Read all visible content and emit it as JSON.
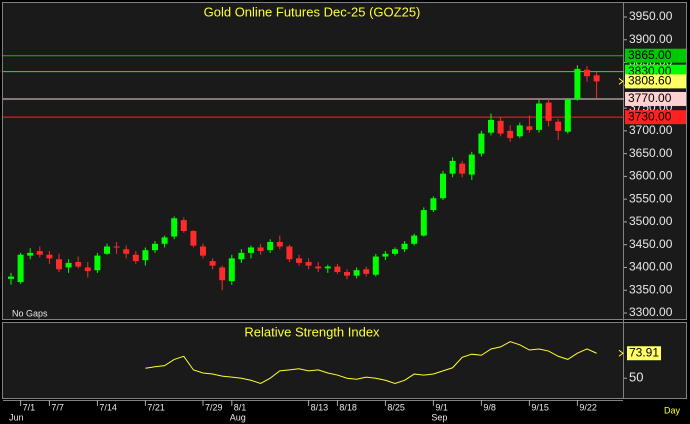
{
  "chart_data": {
    "type": "candlestick",
    "title": "Gold Online Futures Dec-25 (GOZ25)",
    "note": "No Gaps",
    "period": "Day",
    "categories": [
      null,
      "7/1",
      null,
      null,
      "7/7",
      null,
      null,
      null,
      null,
      "7/14",
      null,
      null,
      null,
      null,
      "7/21",
      null,
      null,
      null,
      null,
      null,
      "7/29",
      null,
      null,
      "8/1",
      null,
      null,
      null,
      null,
      null,
      null,
      null,
      "8/13",
      null,
      null,
      "8/18",
      null,
      null,
      null,
      null,
      "8/25",
      null,
      null,
      null,
      null,
      "9/1",
      null,
      null,
      null,
      null,
      "9/8",
      null,
      null,
      null,
      null,
      "9/15",
      null,
      null,
      null,
      null,
      "9/22",
      null,
      null
    ],
    "month_categories": [
      "Jun",
      null,
      null,
      null,
      null,
      null,
      null,
      null,
      null,
      null,
      null,
      null,
      null,
      null,
      null,
      null,
      null,
      null,
      null,
      null,
      null,
      null,
      null,
      "Aug",
      null,
      null,
      null,
      null,
      null,
      null,
      null,
      null,
      null,
      null,
      null,
      null,
      null,
      null,
      null,
      null,
      null,
      null,
      null,
      null,
      "Sep",
      null,
      null,
      null,
      null,
      null,
      null,
      null,
      null,
      null,
      null,
      null,
      null,
      null,
      null,
      null,
      null,
      null
    ],
    "open": [
      3375,
      3368,
      3426,
      3436,
      3428,
      3418,
      3400,
      3412,
      3400,
      3394,
      3430,
      3446,
      3440,
      3428,
      3416,
      3438,
      3452,
      3468,
      3504,
      3480,
      3446,
      3414,
      3400,
      3370,
      3418,
      3432,
      3444,
      3438,
      3456,
      3446,
      3420,
      3412,
      3402,
      3398,
      3402,
      3390,
      3382,
      3396,
      3384,
      3424,
      3430,
      3440,
      3452,
      3470,
      3526,
      3552,
      3606,
      3628,
      3604,
      3650,
      3696,
      3722,
      3700,
      3688,
      3710,
      3702,
      3762,
      3720,
      3698,
      3770,
      3834,
      3822
    ],
    "high": [
      3388,
      3432,
      3442,
      3446,
      3436,
      3430,
      3418,
      3424,
      3412,
      3432,
      3452,
      3456,
      3448,
      3436,
      3444,
      3458,
      3470,
      3512,
      3510,
      3482,
      3452,
      3420,
      3404,
      3428,
      3440,
      3448,
      3452,
      3462,
      3470,
      3450,
      3428,
      3420,
      3412,
      3406,
      3408,
      3396,
      3400,
      3402,
      3430,
      3436,
      3444,
      3458,
      3474,
      3532,
      3556,
      3612,
      3642,
      3634,
      3654,
      3700,
      3738,
      3730,
      3712,
      3718,
      3734,
      3768,
      3770,
      3726,
      3772,
      3844,
      3842,
      3830
    ],
    "low": [
      3362,
      3364,
      3418,
      3422,
      3408,
      3390,
      3388,
      3398,
      3378,
      3388,
      3428,
      3430,
      3420,
      3408,
      3404,
      3432,
      3444,
      3462,
      3476,
      3444,
      3420,
      3396,
      3350,
      3362,
      3410,
      3420,
      3428,
      3432,
      3440,
      3412,
      3404,
      3396,
      3390,
      3388,
      3386,
      3374,
      3376,
      3380,
      3380,
      3416,
      3426,
      3434,
      3448,
      3468,
      3522,
      3548,
      3598,
      3598,
      3592,
      3644,
      3690,
      3688,
      3676,
      3684,
      3696,
      3696,
      3710,
      3680,
      3694,
      3766,
      3808,
      3772
    ],
    "close": [
      3380,
      3428,
      3432,
      3428,
      3420,
      3396,
      3410,
      3402,
      3392,
      3426,
      3446,
      3444,
      3430,
      3414,
      3438,
      3452,
      3466,
      3508,
      3480,
      3448,
      3426,
      3404,
      3372,
      3420,
      3432,
      3444,
      3436,
      3456,
      3446,
      3418,
      3410,
      3404,
      3398,
      3402,
      3390,
      3382,
      3394,
      3386,
      3424,
      3430,
      3440,
      3452,
      3470,
      3526,
      3552,
      3606,
      3634,
      3606,
      3648,
      3694,
      3724,
      3694,
      3684,
      3712,
      3702,
      3760,
      3722,
      3700,
      3768,
      3836,
      3820,
      3808.6
    ],
    "last_close_label": "3808.60",
    "up_color": "#00ff00",
    "down_color": "#ff2a2a",
    "ylim": [
      3300,
      3950
    ],
    "yticks": [
      {
        "value": 3300,
        "label": "3300.00"
      },
      {
        "value": 3350,
        "label": "3350.00"
      },
      {
        "value": 3400,
        "label": "3400.00"
      },
      {
        "value": 3450,
        "label": "3450.00"
      },
      {
        "value": 3500,
        "label": "3500.00"
      },
      {
        "value": 3550,
        "label": "3550.00"
      },
      {
        "value": 3600,
        "label": "3600.00"
      },
      {
        "value": 3650,
        "label": "3650.00"
      },
      {
        "value": 3700,
        "label": "3700.00"
      },
      {
        "value": 3750,
        "label": "3750.00"
      },
      {
        "value": 3800,
        "label": "3800.00"
      },
      {
        "value": 3850,
        "label": "3850.00"
      },
      {
        "value": 3900,
        "label": "3900.00"
      },
      {
        "value": 3950,
        "label": "3950.00"
      }
    ],
    "price_lines": [
      {
        "value": 3865,
        "label": "3865.00",
        "color": "#00c800"
      },
      {
        "value": 3830,
        "label": "3830.00",
        "color": "#00ff00"
      },
      {
        "value": 3770,
        "label": "3770.00",
        "color": "#ffd0d0"
      },
      {
        "value": 3730,
        "label": "3730.00",
        "color": "#ff2020"
      }
    ],
    "indicator": {
      "title": "Relative Strength Index",
      "color": "#ffff33",
      "values": [
        null,
        null,
        null,
        null,
        null,
        null,
        null,
        null,
        null,
        null,
        null,
        null,
        null,
        null,
        59.5,
        61,
        62,
        68,
        71,
        58,
        55,
        54,
        52,
        51,
        50,
        48,
        45,
        50,
        57,
        58,
        59,
        57,
        58,
        55,
        53,
        50,
        49,
        51,
        50,
        48,
        45,
        48,
        54,
        53,
        54,
        57,
        60,
        70,
        73,
        72,
        78,
        80,
        85,
        82,
        77,
        78,
        76,
        71,
        68,
        74,
        78,
        73.91
      ],
      "value_label": "73.91",
      "ylim": [
        32,
        100
      ],
      "yticks": [
        50
      ]
    }
  }
}
